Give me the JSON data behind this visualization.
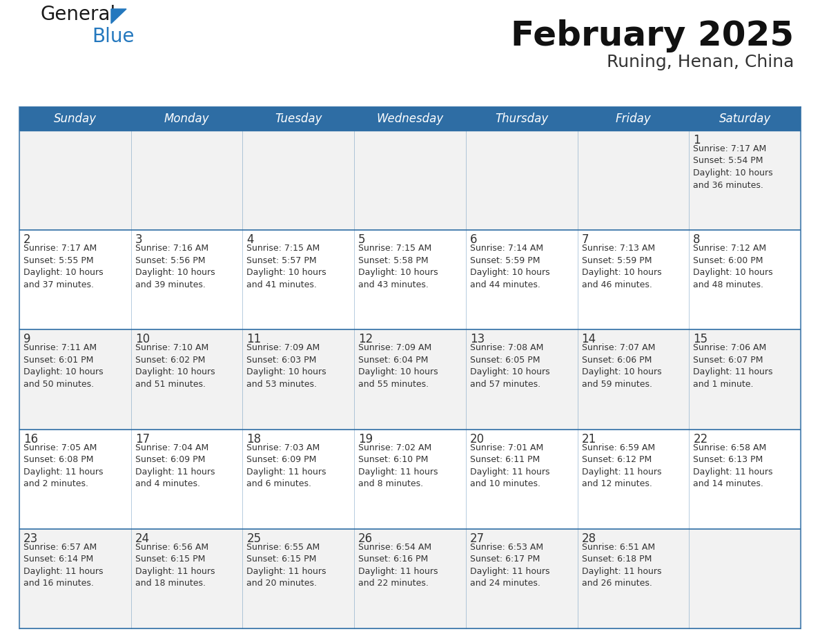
{
  "title": "February 2025",
  "subtitle": "Runing, Henan, China",
  "header_bg": "#2E6DA4",
  "header_text_color": "#FFFFFF",
  "cell_bg_odd": "#F2F2F2",
  "cell_bg_even": "#FFFFFF",
  "border_color": "#2E6DA4",
  "text_color": "#333333",
  "days_of_week": [
    "Sunday",
    "Monday",
    "Tuesday",
    "Wednesday",
    "Thursday",
    "Friday",
    "Saturday"
  ],
  "calendar_data": [
    [
      null,
      null,
      null,
      null,
      null,
      null,
      {
        "day": "1",
        "sunrise": "7:17 AM",
        "sunset": "5:54 PM",
        "daylight": "10 hours\nand 36 minutes."
      }
    ],
    [
      {
        "day": "2",
        "sunrise": "7:17 AM",
        "sunset": "5:55 PM",
        "daylight": "10 hours\nand 37 minutes."
      },
      {
        "day": "3",
        "sunrise": "7:16 AM",
        "sunset": "5:56 PM",
        "daylight": "10 hours\nand 39 minutes."
      },
      {
        "day": "4",
        "sunrise": "7:15 AM",
        "sunset": "5:57 PM",
        "daylight": "10 hours\nand 41 minutes."
      },
      {
        "day": "5",
        "sunrise": "7:15 AM",
        "sunset": "5:58 PM",
        "daylight": "10 hours\nand 43 minutes."
      },
      {
        "day": "6",
        "sunrise": "7:14 AM",
        "sunset": "5:59 PM",
        "daylight": "10 hours\nand 44 minutes."
      },
      {
        "day": "7",
        "sunrise": "7:13 AM",
        "sunset": "5:59 PM",
        "daylight": "10 hours\nand 46 minutes."
      },
      {
        "day": "8",
        "sunrise": "7:12 AM",
        "sunset": "6:00 PM",
        "daylight": "10 hours\nand 48 minutes."
      }
    ],
    [
      {
        "day": "9",
        "sunrise": "7:11 AM",
        "sunset": "6:01 PM",
        "daylight": "10 hours\nand 50 minutes."
      },
      {
        "day": "10",
        "sunrise": "7:10 AM",
        "sunset": "6:02 PM",
        "daylight": "10 hours\nand 51 minutes."
      },
      {
        "day": "11",
        "sunrise": "7:09 AM",
        "sunset": "6:03 PM",
        "daylight": "10 hours\nand 53 minutes."
      },
      {
        "day": "12",
        "sunrise": "7:09 AM",
        "sunset": "6:04 PM",
        "daylight": "10 hours\nand 55 minutes."
      },
      {
        "day": "13",
        "sunrise": "7:08 AM",
        "sunset": "6:05 PM",
        "daylight": "10 hours\nand 57 minutes."
      },
      {
        "day": "14",
        "sunrise": "7:07 AM",
        "sunset": "6:06 PM",
        "daylight": "10 hours\nand 59 minutes."
      },
      {
        "day": "15",
        "sunrise": "7:06 AM",
        "sunset": "6:07 PM",
        "daylight": "11 hours\nand 1 minute."
      }
    ],
    [
      {
        "day": "16",
        "sunrise": "7:05 AM",
        "sunset": "6:08 PM",
        "daylight": "11 hours\nand 2 minutes."
      },
      {
        "day": "17",
        "sunrise": "7:04 AM",
        "sunset": "6:09 PM",
        "daylight": "11 hours\nand 4 minutes."
      },
      {
        "day": "18",
        "sunrise": "7:03 AM",
        "sunset": "6:09 PM",
        "daylight": "11 hours\nand 6 minutes."
      },
      {
        "day": "19",
        "sunrise": "7:02 AM",
        "sunset": "6:10 PM",
        "daylight": "11 hours\nand 8 minutes."
      },
      {
        "day": "20",
        "sunrise": "7:01 AM",
        "sunset": "6:11 PM",
        "daylight": "11 hours\nand 10 minutes."
      },
      {
        "day": "21",
        "sunrise": "6:59 AM",
        "sunset": "6:12 PM",
        "daylight": "11 hours\nand 12 minutes."
      },
      {
        "day": "22",
        "sunrise": "6:58 AM",
        "sunset": "6:13 PM",
        "daylight": "11 hours\nand 14 minutes."
      }
    ],
    [
      {
        "day": "23",
        "sunrise": "6:57 AM",
        "sunset": "6:14 PM",
        "daylight": "11 hours\nand 16 minutes."
      },
      {
        "day": "24",
        "sunrise": "6:56 AM",
        "sunset": "6:15 PM",
        "daylight": "11 hours\nand 18 minutes."
      },
      {
        "day": "25",
        "sunrise": "6:55 AM",
        "sunset": "6:15 PM",
        "daylight": "11 hours\nand 20 minutes."
      },
      {
        "day": "26",
        "sunrise": "6:54 AM",
        "sunset": "6:16 PM",
        "daylight": "11 hours\nand 22 minutes."
      },
      {
        "day": "27",
        "sunrise": "6:53 AM",
        "sunset": "6:17 PM",
        "daylight": "11 hours\nand 24 minutes."
      },
      {
        "day": "28",
        "sunrise": "6:51 AM",
        "sunset": "6:18 PM",
        "daylight": "11 hours\nand 26 minutes."
      },
      null
    ]
  ],
  "logo_general_color": "#1a1a1a",
  "logo_blue_color": "#2478BE",
  "logo_triangle_color": "#2478BE",
  "title_fontsize": 36,
  "subtitle_fontsize": 18,
  "header_fontsize": 12,
  "day_num_fontsize": 12,
  "cell_text_fontsize": 9,
  "fig_width": 11.88,
  "fig_height": 9.18,
  "fig_dpi": 100
}
